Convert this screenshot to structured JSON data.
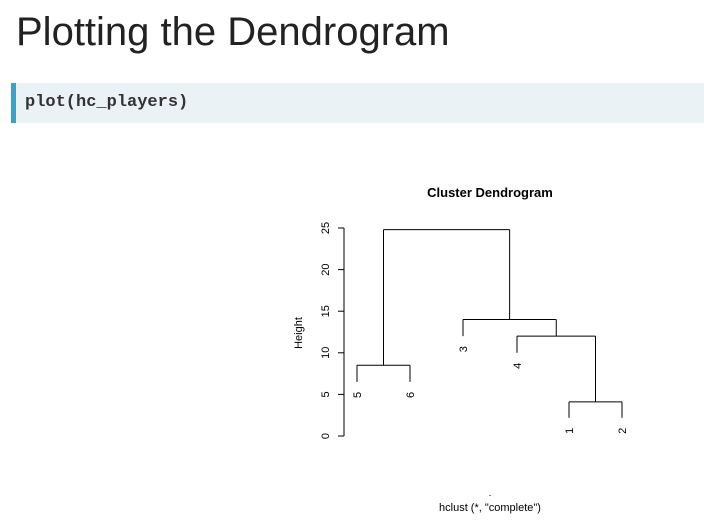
{
  "slide": {
    "title": "Plotting the Dendrogram"
  },
  "code": {
    "line": "plot(hc_players)"
  },
  "plot": {
    "title": "Cluster Dendrogram",
    "ylabel": "Height",
    "xlabel": "hclust (*, \"complete\")",
    "sub_dot": "."
  },
  "chart_data": {
    "type": "dendrogram",
    "title": "Cluster Dendrogram",
    "ylabel": "Height",
    "xlabel": "hclust (*, \"complete\")",
    "ylim": [
      0,
      25
    ],
    "yticks": [
      0,
      5,
      10,
      15,
      20,
      25
    ],
    "leaf_order": [
      "5",
      "6",
      "3",
      "4",
      "1",
      "2"
    ],
    "merges": [
      {
        "id": "m12",
        "left": "1",
        "right": "2",
        "height": 4.1
      },
      {
        "id": "m56",
        "left": "5",
        "right": "6",
        "height": 8.5
      },
      {
        "id": "m4-12",
        "left": "4",
        "right": "m12",
        "height": 12.0
      },
      {
        "id": "m3-412",
        "left": "3",
        "right": "m4-12",
        "height": 14.0
      },
      {
        "id": "root",
        "left": "m56",
        "right": "m3-412",
        "height": 24.8
      }
    ],
    "leaf_heights": {
      "5": 6.5,
      "6": 6.5,
      "3": 12.0,
      "4": 10.0,
      "1": 2.2,
      "2": 2.2
    }
  }
}
